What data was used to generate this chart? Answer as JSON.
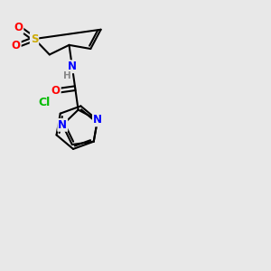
{
  "bg_color": "#e8e8e8",
  "bond_color": "#000000",
  "bond_width": 1.5,
  "atom_colors": {
    "N": "#0000ff",
    "O": "#ff0000",
    "S": "#ccaa00",
    "Cl": "#00bb00",
    "C": "#000000",
    "H": "#888888"
  },
  "font_size": 8.5,
  "fig_width": 3.0,
  "fig_height": 3.0,
  "dpi": 100
}
